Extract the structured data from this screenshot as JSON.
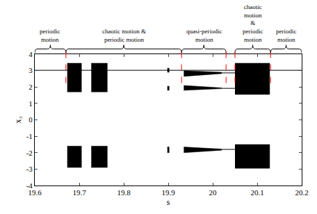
{
  "chart_data": {
    "type": "scatter",
    "x_label": "s",
    "y_label": "x₃",
    "xlim": [
      19.6,
      20.2
    ],
    "xticks": [
      19.6,
      19.7,
      19.8,
      19.9,
      20,
      20.1,
      20.2
    ],
    "ylim": [
      -4,
      4
    ],
    "yticks": [
      -4,
      -3,
      -2,
      -1,
      0,
      1,
      2,
      3,
      4
    ],
    "grid": false,
    "color": "#000000",
    "regions": [
      {
        "label": "periodic\nmotion",
        "x0": 19.6,
        "x1": 19.67
      },
      {
        "label": "chaotic motion &\nperiodic motion",
        "x0": 19.67,
        "x1": 19.93
      },
      {
        "label": "quasi-periodic\nmotion",
        "x0": 19.93,
        "x1": 20.03
      },
      {
        "label": "chaotic\nmotion\n&\nperiodic\nmotion",
        "x0": 20.05,
        "x1": 20.13
      },
      {
        "label": "periodic\nmotion",
        "x0": 20.13,
        "x1": 20.2
      }
    ],
    "boundaries": [
      19.67,
      19.93,
      20.03,
      20.05,
      20.13
    ],
    "lines": [
      {
        "x": [
          19.6,
          20.2
        ],
        "y": [
          3.02,
          3.02
        ]
      },
      {
        "x": [
          20.02,
          20.05
        ],
        "y": [
          2.86,
          2.86
        ]
      },
      {
        "x": [
          20.02,
          20.05
        ],
        "y": [
          1.92,
          1.92
        ]
      },
      {
        "x": [
          20.02,
          20.05
        ],
        "y": [
          -1.8,
          -1.8
        ]
      }
    ],
    "bands": [
      {
        "x": [
          19.673,
          19.705,
          19.705,
          19.673
        ],
        "y": [
          1.7,
          1.7,
          3.45,
          3.45
        ]
      },
      {
        "x": [
          19.673,
          19.705,
          19.705,
          19.673
        ],
        "y": [
          -1.6,
          -1.6,
          -2.9,
          -2.9
        ]
      },
      {
        "x": [
          19.727,
          19.763,
          19.763,
          19.727
        ],
        "y": [
          1.7,
          1.7,
          3.45,
          3.45
        ]
      },
      {
        "x": [
          19.727,
          19.763,
          19.763,
          19.727
        ],
        "y": [
          -1.6,
          -1.6,
          -2.9,
          -2.9
        ]
      },
      {
        "x": [
          19.898,
          19.902,
          19.902,
          19.898
        ],
        "y": [
          2.9,
          2.9,
          3.15,
          3.15
        ]
      },
      {
        "x": [
          19.898,
          19.902,
          19.902,
          19.898
        ],
        "y": [
          1.8,
          1.8,
          2.05,
          2.05
        ]
      },
      {
        "x": [
          19.898,
          19.902,
          19.902,
          19.898
        ],
        "y": [
          -1.65,
          -1.65,
          -2.0,
          -2.0
        ]
      },
      {
        "x": [
          19.935,
          20.02,
          20.02,
          19.935
        ],
        "y": [
          2.65,
          2.82,
          2.9,
          3.0
        ]
      },
      {
        "x": [
          19.935,
          20.02,
          20.02,
          19.935
        ],
        "y": [
          1.8,
          1.9,
          1.95,
          2.1
        ]
      },
      {
        "x": [
          19.935,
          20.02,
          20.02,
          19.935
        ],
        "y": [
          -1.65,
          -1.78,
          -1.85,
          -2.0
        ]
      },
      {
        "x": [
          20.05,
          20.128,
          20.128,
          20.05
        ],
        "y": [
          1.55,
          1.55,
          3.45,
          3.45
        ]
      },
      {
        "x": [
          20.05,
          20.128,
          20.128,
          20.05
        ],
        "y": [
          -1.5,
          -1.5,
          -2.95,
          -2.95
        ]
      }
    ]
  }
}
